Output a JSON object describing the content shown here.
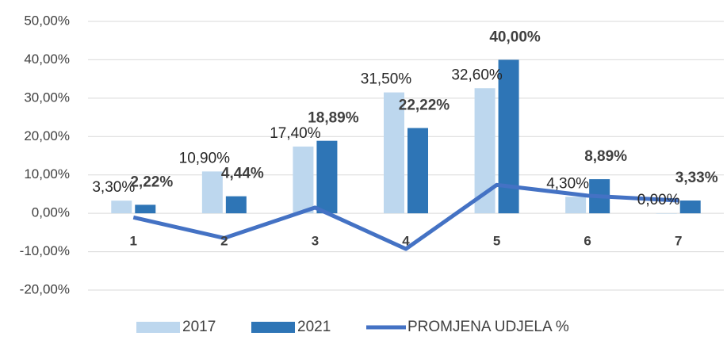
{
  "chart_data": {
    "type": "bar",
    "categories": [
      "1",
      "2",
      "3",
      "4",
      "5",
      "6",
      "7"
    ],
    "series": [
      {
        "name": "2017",
        "color": "#bdd7ee",
        "values": [
          3.3,
          10.9,
          17.4,
          31.5,
          32.6,
          4.3,
          0
        ],
        "value_labels": [
          "3,30%",
          "10,90%",
          "17,40%",
          "31,50%",
          "32,60%",
          "4,30%",
          "0,00%"
        ]
      },
      {
        "name": "2021",
        "color": "#2e75b6",
        "values": [
          2.22,
          4.44,
          18.89,
          22.22,
          40,
          8.89,
          3.33
        ],
        "value_labels": [
          "2,22%",
          "4,44%",
          "18,89%",
          "22,22%",
          "40,00%",
          "8,89%",
          "3,33%"
        ]
      },
      {
        "name": "PROMJENA UDJELA %",
        "type": "line",
        "color": "#4472c4",
        "values": [
          -1.08,
          -6.46,
          1.49,
          -9.28,
          7.4,
          4.59,
          3.33
        ]
      }
    ],
    "ylim": [
      -20,
      50
    ],
    "yticks": [
      {
        "value": -20,
        "label": "-20,00%"
      },
      {
        "value": -10,
        "label": "-10,00%"
      },
      {
        "value": 0,
        "label": "0,00%"
      },
      {
        "value": 10,
        "label": "10,00%"
      },
      {
        "value": 20,
        "label": "20,00%"
      },
      {
        "value": 30,
        "label": "30,00%"
      },
      {
        "value": 40,
        "label": "40,00%"
      },
      {
        "value": 50,
        "label": "50,00%"
      }
    ],
    "grid": true,
    "legend": "bottom"
  }
}
